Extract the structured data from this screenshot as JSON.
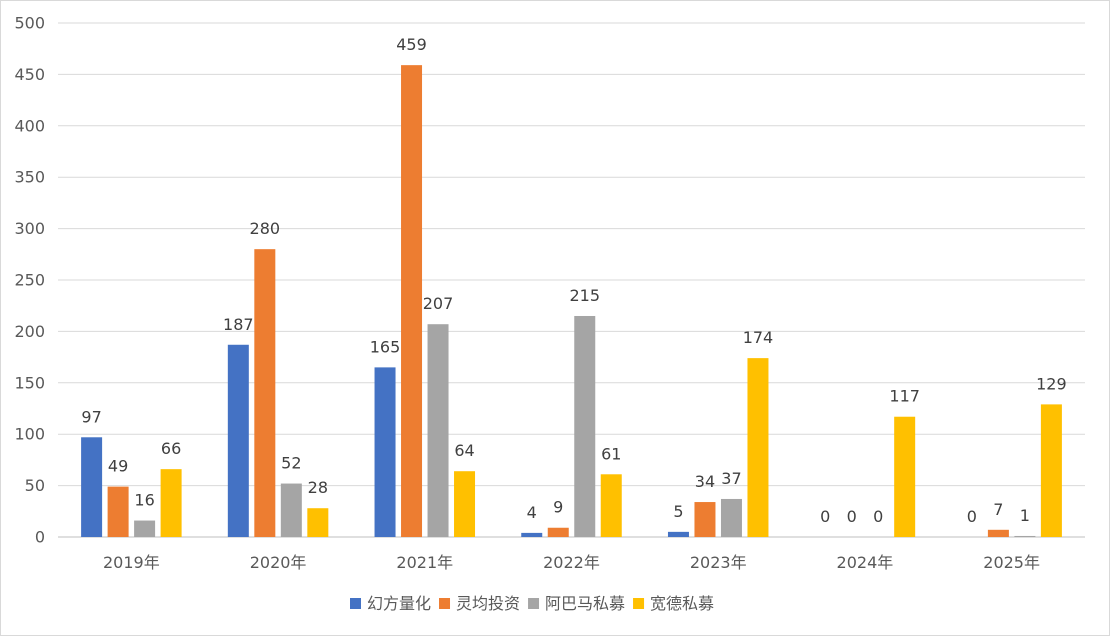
{
  "chart_data": {
    "type": "bar",
    "categories": [
      "2019年",
      "2020年",
      "2021年",
      "2022年",
      "2023年",
      "2024年",
      "2025年"
    ],
    "series": [
      {
        "name": "幻方量化",
        "color": "#4472C4",
        "values": [
          97,
          187,
          165,
          4,
          5,
          0,
          0
        ]
      },
      {
        "name": "灵均投资",
        "color": "#ED7D31",
        "values": [
          49,
          280,
          459,
          9,
          34,
          0,
          7
        ]
      },
      {
        "name": "阿巴马私募",
        "color": "#A5A5A5",
        "values": [
          16,
          52,
          207,
          215,
          37,
          0,
          1
        ]
      },
      {
        "name": "宽德私募",
        "color": "#FFC000",
        "values": [
          66,
          28,
          64,
          61,
          174,
          117,
          129
        ]
      }
    ],
    "ylim": [
      0,
      500
    ],
    "yticks": [
      0,
      50,
      100,
      150,
      200,
      250,
      300,
      350,
      400,
      450,
      500
    ],
    "grid": true,
    "legend": "bottom",
    "data_labels": [
      [
        "97",
        "187",
        "165",
        "4",
        "5",
        "0",
        "0"
      ],
      [
        "49",
        "280",
        "459",
        "9",
        "34",
        "0",
        "7"
      ],
      [
        "16",
        "52",
        "207",
        "215",
        "37",
        "0",
        "1"
      ],
      [
        "66",
        "28",
        "64",
        "61",
        "174",
        "117",
        "129"
      ]
    ]
  }
}
